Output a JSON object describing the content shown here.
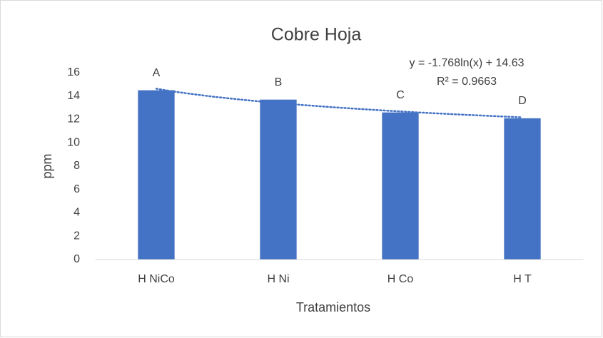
{
  "chart_data": {
    "type": "bar",
    "title": "Cobre Hoja",
    "categories": [
      "H NiCo",
      "H Ni",
      "H Co",
      "H T"
    ],
    "values": [
      14.5,
      13.7,
      12.6,
      12.1
    ],
    "letters": [
      "A",
      "B",
      "C",
      "D"
    ],
    "color": "#4472c4",
    "ylabel": "ppm",
    "xlabel": "Tratamientos",
    "ylim": [
      0,
      16
    ],
    "yticks": [
      0,
      2,
      4,
      6,
      8,
      10,
      12,
      14,
      16
    ],
    "grid": false,
    "trendline": {
      "kind": "log",
      "slope": -1.768,
      "intercept": 14.63,
      "color": "#4472c4",
      "equation": "y = -1.768ln(x) + 14.63",
      "r2_label": "R² = 0.9663"
    }
  }
}
